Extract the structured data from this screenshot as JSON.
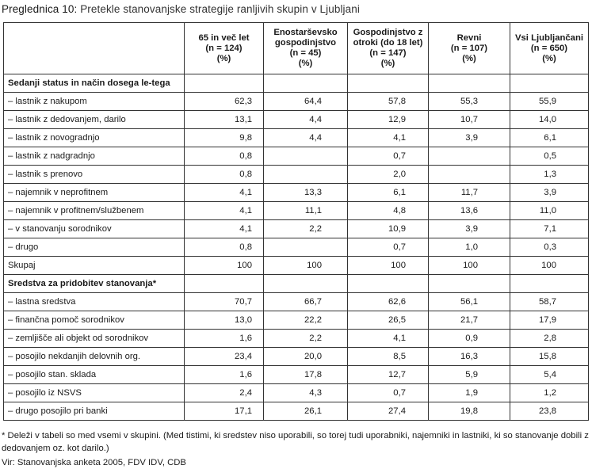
{
  "caption": {
    "label": "Preglednica 10:",
    "title": "Pretekle stanovanjske strategije ranljivih skupin v Ljubljani"
  },
  "columns": [
    "",
    "65 in več let\n(n = 124)\n(%)",
    "Enostarševsko\ngospodinjstvo\n(n = 45)\n(%)",
    "Gospodinjstvo z\notroki (do 18 let)\n(n = 147)\n(%)",
    "Revni\n(n = 107)\n(%)",
    "Vsi Ljubljančani\n(n = 650)\n(%)"
  ],
  "rows": [
    {
      "label": "Sedanji status in način dosega le-tega",
      "section": true,
      "values": [
        "",
        "",
        "",
        "",
        ""
      ]
    },
    {
      "label": "– lastnik z nakupom",
      "values": [
        "62,3",
        "64,4",
        "57,8",
        "55,3",
        "55,9"
      ]
    },
    {
      "label": "– lastnik z dedovanjem, darilo",
      "values": [
        "13,1",
        "4,4",
        "12,9",
        "10,7",
        "14,0"
      ]
    },
    {
      "label": "– lastnik z novogradnjo",
      "values": [
        "9,8",
        "4,4",
        "4,1",
        "3,9",
        "6,1"
      ]
    },
    {
      "label": "– lastnik z nadgradnjo",
      "values": [
        "0,8",
        "",
        "0,7",
        "",
        "0,5"
      ]
    },
    {
      "label": "– lastnik s prenovo",
      "values": [
        "0,8",
        "",
        "2,0",
        "",
        "1,3"
      ]
    },
    {
      "label": "– najemnik v neprofitnem",
      "values": [
        "4,1",
        "13,3",
        "6,1",
        "11,7",
        "3,9"
      ]
    },
    {
      "label": "– najemnik v profitnem/službenem",
      "values": [
        "4,1",
        "11,1",
        "4,8",
        "13,6",
        "11,0"
      ]
    },
    {
      "label": "– v stanovanju sorodnikov",
      "values": [
        "4,1",
        "2,2",
        "10,9",
        "3,9",
        "7,1"
      ]
    },
    {
      "label": "– drugo",
      "values": [
        "0,8",
        "",
        "0,7",
        "1,0",
        "0,3"
      ]
    },
    {
      "label": "Skupaj",
      "values": [
        "100",
        "100",
        "100",
        "100",
        "100"
      ]
    },
    {
      "label": "Sredstva za pridobitev stanovanja*",
      "section": true,
      "values": [
        "",
        "",
        "",
        "",
        ""
      ]
    },
    {
      "label": "– lastna sredstva",
      "values": [
        "70,7",
        "66,7",
        "62,6",
        "56,1",
        "58,7"
      ]
    },
    {
      "label": "– finančna pomoč sorodnikov",
      "values": [
        "13,0",
        "22,2",
        "26,5",
        "21,7",
        "17,9"
      ]
    },
    {
      "label": "– zemljišče ali objekt od sorodnikov",
      "values": [
        "1,6",
        "2,2",
        "4,1",
        "0,9",
        "2,8"
      ]
    },
    {
      "label": "– posojilo nekdanjih delovnih org.",
      "values": [
        "23,4",
        "20,0",
        "8,5",
        "16,3",
        "15,8"
      ]
    },
    {
      "label": "– posojilo stan. sklada",
      "values": [
        "1,6",
        "17,8",
        "12,7",
        "5,9",
        "5,4"
      ]
    },
    {
      "label": "– posojilo iz NSVS",
      "values": [
        "2,4",
        "4,3",
        "0,7",
        "1,9",
        "1,2"
      ]
    },
    {
      "label": "– drugo posojilo pri banki",
      "values": [
        "17,1",
        "26,1",
        "27,4",
        "19,8",
        "23,8"
      ]
    }
  ],
  "footnote": "* Deleži v tabeli so med vsemi v skupini. (Med tistimi, ki sredstev niso uporabili, so torej tudi uporabniki, najemniki in lastniki, ki so stanovanje dobili z dedovanjem oz. kot darilo.)",
  "source": "Vir: Stanovanjska anketa 2005, FDV IDV, CDB"
}
